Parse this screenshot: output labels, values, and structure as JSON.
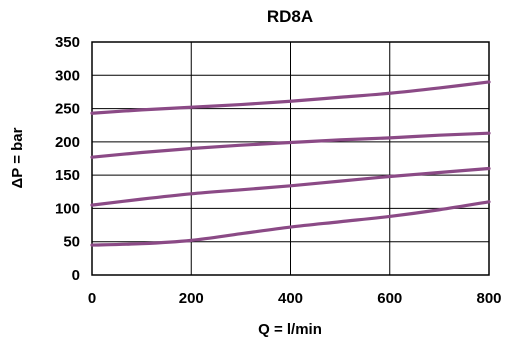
{
  "chart_data": {
    "type": "line",
    "title": "RD8A",
    "xlabel": "Q = l/min",
    "ylabel": "ΔP = bar",
    "xlim": [
      0,
      800
    ],
    "ylim": [
      0,
      350
    ],
    "xticks": [
      0,
      200,
      400,
      600,
      800
    ],
    "yticks": [
      0,
      50,
      100,
      150,
      200,
      250,
      300,
      350
    ],
    "grid": true,
    "legend": "none",
    "line_color": "#8b4a86",
    "series": [
      {
        "x": [
          0,
          100,
          200,
          300,
          400,
          500,
          600,
          700,
          800
        ],
        "y": [
          45,
          47,
          52,
          62,
          72,
          80,
          88,
          98,
          110
        ]
      },
      {
        "x": [
          0,
          100,
          200,
          300,
          400,
          500,
          600,
          700,
          800
        ],
        "y": [
          105,
          114,
          122,
          128,
          134,
          141,
          148,
          154,
          160
        ]
      },
      {
        "x": [
          0,
          100,
          200,
          300,
          400,
          500,
          600,
          700,
          800
        ],
        "y": [
          177,
          184,
          190,
          195,
          199,
          203,
          206,
          210,
          213
        ]
      },
      {
        "x": [
          0,
          100,
          200,
          300,
          400,
          500,
          600,
          700,
          800
        ],
        "y": [
          243,
          248,
          252,
          256,
          261,
          267,
          273,
          281,
          290
        ]
      }
    ]
  }
}
